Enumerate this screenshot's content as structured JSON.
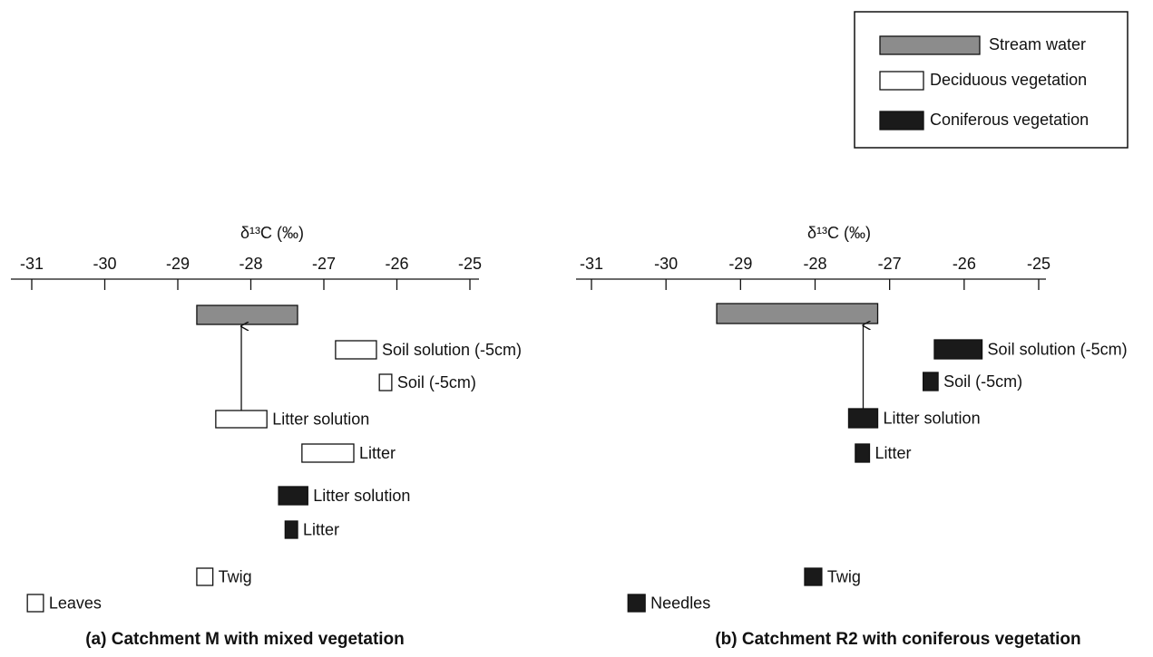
{
  "legend": [
    {
      "name": "Stream water",
      "fill": "#8c8c8c"
    },
    {
      "name": "Deciduous vegetation",
      "fill": "#ffffff"
    },
    {
      "name": "Coniferous vegetation",
      "fill": "#1a1a1a"
    }
  ],
  "chart_data": [
    {
      "type": "range",
      "title": "(a) Catchment M with mixed vegetation",
      "x_label": "δ¹³C (‰)",
      "xlim": [
        -31,
        -25
      ],
      "xticks": [
        -31,
        -30,
        -29,
        -28,
        -27,
        -26,
        -25
      ],
      "bars": [
        {
          "label": null,
          "fill": "#8c8c8c",
          "start": -28.74,
          "end": -27.36
        },
        {
          "label": "Soil solution (-5cm)",
          "fill": "#ffffff",
          "start": -26.84,
          "end": -26.28
        },
        {
          "label": "Soil (-5cm)",
          "fill": "#ffffff",
          "start": -26.24,
          "end": -26.07
        },
        {
          "label": "Litter solution",
          "fill": "#ffffff",
          "start": -28.48,
          "end": -27.78
        },
        {
          "label": "Litter",
          "fill": "#ffffff",
          "start": -27.3,
          "end": -26.59
        },
        {
          "label": "Litter solution",
          "fill": "#1a1a1a",
          "start": -27.62,
          "end": -27.22
        },
        {
          "label": "Litter",
          "fill": "#1a1a1a",
          "start": -27.53,
          "end": -27.36
        },
        {
          "label": "Twig",
          "fill": "#ffffff",
          "start": -28.74,
          "end": -28.52
        },
        {
          "label": "Leaves",
          "fill": "#ffffff",
          "start": -31.06,
          "end": -30.84
        }
      ]
    },
    {
      "type": "range",
      "title": "(b) Catchment R2 with coniferous vegetation",
      "x_label": "δ¹³C (‰)",
      "xlim": [
        -31,
        -25
      ],
      "xticks": [
        -31,
        -30,
        -29,
        -28,
        -27,
        -26,
        -25
      ],
      "bars": [
        {
          "label": null,
          "fill": "#8c8c8c",
          "start": -29.32,
          "end": -27.16
        },
        {
          "label": "Soil solution (-5cm)",
          "fill": "#1a1a1a",
          "start": -26.4,
          "end": -25.76
        },
        {
          "label": "Soil (-5cm)",
          "fill": "#1a1a1a",
          "start": -26.55,
          "end": -26.35
        },
        {
          "label": "Litter solution",
          "fill": "#1a1a1a",
          "start": -27.55,
          "end": -27.16
        },
        {
          "label": "Litter",
          "fill": "#1a1a1a",
          "start": -27.46,
          "end": -27.27
        },
        {
          "label": "Twig",
          "fill": "#1a1a1a",
          "start": -28.14,
          "end": -27.91
        },
        {
          "label": "Needles",
          "fill": "#1a1a1a",
          "start": -30.51,
          "end": -30.28
        }
      ]
    }
  ]
}
